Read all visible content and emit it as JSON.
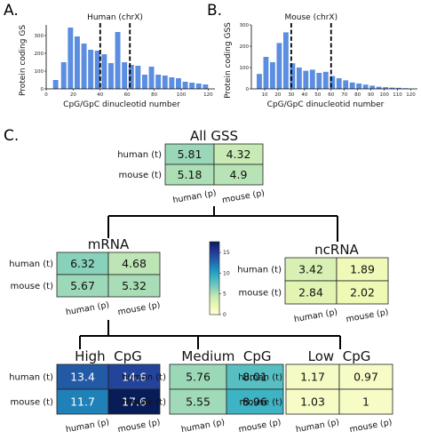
{
  "panels": {
    "a": "A.",
    "b": "B.",
    "c": "C."
  },
  "chart_data": [
    {
      "type": "bar",
      "title": "Human (chrX)",
      "xlabel": "CpG/GpC dinucleotid number",
      "ylabel": "Protein coding GS",
      "x": [
        7,
        13,
        18,
        23,
        28,
        33,
        38,
        43,
        48,
        53,
        58,
        63,
        68,
        73,
        78,
        83,
        88,
        93,
        98,
        103,
        108,
        113,
        118
      ],
      "values": [
        50,
        150,
        345,
        295,
        255,
        220,
        215,
        195,
        145,
        320,
        150,
        135,
        130,
        80,
        125,
        80,
        75,
        65,
        60,
        40,
        35,
        30,
        25
      ],
      "xlim": [
        0,
        125
      ],
      "ylim": [
        0,
        360
      ],
      "xticks": [
        0,
        20,
        40,
        60,
        80,
        100,
        120
      ],
      "yticks": [
        0,
        100,
        200,
        300
      ],
      "vlines": [
        40,
        62
      ],
      "color": "#5b8de0"
    },
    {
      "type": "bar",
      "title": "Mouse (chrX)",
      "xlabel": "CpG/GpC dinucleotid number",
      "ylabel": "Protein coding GSS",
      "x": [
        6,
        11,
        16,
        21,
        26,
        31,
        36,
        41,
        46,
        51,
        56,
        61,
        66,
        71,
        76,
        81,
        86,
        91,
        96,
        101,
        106,
        111,
        116
      ],
      "values": [
        70,
        150,
        125,
        215,
        265,
        120,
        100,
        85,
        90,
        75,
        80,
        60,
        50,
        40,
        30,
        25,
        20,
        15,
        10,
        8,
        6,
        5,
        3
      ],
      "xlim": [
        0,
        125
      ],
      "ylim": [
        0,
        300
      ],
      "xticks": [
        10,
        20,
        30,
        40,
        50,
        60,
        70,
        80,
        90,
        100,
        110,
        120
      ],
      "yticks": [
        0,
        100,
        200,
        300
      ],
      "vlines": [
        30,
        60
      ],
      "color": "#5b8de0"
    },
    {
      "type": "heatmap",
      "title": "All GSS",
      "rows": [
        "human (t)",
        "mouse (t)"
      ],
      "cols": [
        "human (p)",
        "mouse (p)"
      ],
      "values": [
        [
          5.81,
          4.32
        ],
        [
          5.18,
          4.9
        ]
      ]
    },
    {
      "type": "heatmap",
      "title": "mRNA",
      "rows": [
        "human (t)",
        "mouse (t)"
      ],
      "cols": [
        "human (p)",
        "mouse (p)"
      ],
      "values": [
        [
          6.32,
          4.68
        ],
        [
          5.67,
          5.32
        ]
      ]
    },
    {
      "type": "heatmap",
      "title": "ncRNA",
      "rows": [
        "human (t)",
        "mouse (t)"
      ],
      "cols": [
        "human (p)",
        "mouse (p)"
      ],
      "values": [
        [
          3.42,
          1.89
        ],
        [
          2.84,
          2.02
        ]
      ]
    },
    {
      "type": "heatmap",
      "title": "High  CpG",
      "rows": [
        "human (t)",
        "mouse (t)"
      ],
      "cols": [
        "human (p)",
        "mouse (p)"
      ],
      "values": [
        [
          13.4,
          14.6
        ],
        [
          11.7,
          17.6
        ]
      ]
    },
    {
      "type": "heatmap",
      "title": "Medium  CpG",
      "rows": [
        "human (t)",
        "mouse (t)"
      ],
      "cols": [
        "human (p)",
        "mouse (p)"
      ],
      "values": [
        [
          5.76,
          8.01
        ],
        [
          5.55,
          8.96
        ]
      ]
    },
    {
      "type": "heatmap",
      "title": "Low  CpG",
      "rows": [
        "human (t)",
        "mouse (t)"
      ],
      "cols": [
        "human (p)",
        "mouse (p)"
      ],
      "values": [
        [
          1.17,
          0.97
        ],
        [
          1.03,
          1.0
        ]
      ]
    }
  ],
  "colorbar": {
    "range": [
      0,
      17.6
    ],
    "ticks": [
      0,
      5,
      10,
      15
    ],
    "colormap": "YlGnBu"
  }
}
